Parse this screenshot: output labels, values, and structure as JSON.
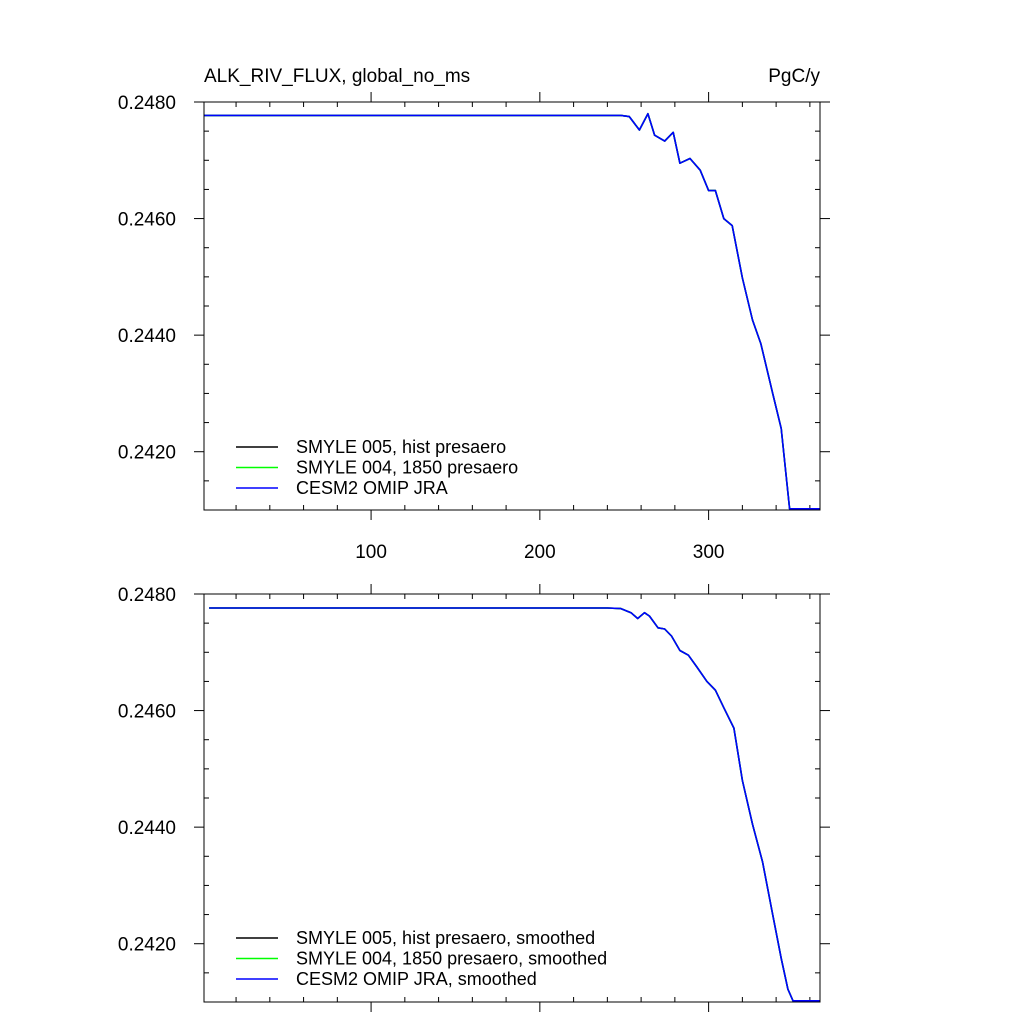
{
  "colors": {
    "smyle005": "#000000",
    "smyle004": "#00ff00",
    "cesm2": "#0000ff",
    "background": "#ffffff"
  },
  "chart_data": [
    {
      "type": "line",
      "title_left": "ALK_RIV_FLUX, global_no_ms",
      "title_right": "PgC/y",
      "xlim": [
        1,
        366
      ],
      "ylim": [
        0.241,
        0.248
      ],
      "xticks": [
        100,
        200,
        300
      ],
      "xtick_labels": [
        "100",
        "200",
        "300"
      ],
      "xticks_labeled": true,
      "yticks": [
        0.248,
        0.246,
        0.244,
        0.242
      ],
      "ytick_labels": [
        "0.2480",
        "0.2460",
        "0.2440",
        "0.2420"
      ],
      "legend_position": "bottom-left",
      "series": [
        {
          "name": "SMYLE 005, hist presaero",
          "color": "#000000",
          "x": [
            1,
            248,
            253,
            259,
            264,
            268,
            274,
            279,
            283,
            289,
            295,
            300,
            304,
            309,
            314,
            320,
            326,
            331,
            338,
            343,
            348,
            366
          ],
          "y": [
            0.24777,
            0.24777,
            0.24775,
            0.24752,
            0.2478,
            0.24743,
            0.24733,
            0.24748,
            0.24695,
            0.24703,
            0.24683,
            0.24648,
            0.24648,
            0.246,
            0.24588,
            0.24498,
            0.24426,
            0.24385,
            0.243,
            0.2424,
            0.24102,
            0.24102
          ]
        },
        {
          "name": "SMYLE 004, 1850 presaero",
          "color": "#00ff00",
          "x": [
            1,
            248,
            253,
            259,
            264,
            268,
            274,
            279,
            283,
            289,
            295,
            300,
            304,
            309,
            314,
            320,
            326,
            331,
            338,
            343,
            348,
            366
          ],
          "y": [
            0.24777,
            0.24777,
            0.24775,
            0.24752,
            0.2478,
            0.24743,
            0.24733,
            0.24748,
            0.24695,
            0.24703,
            0.24683,
            0.24648,
            0.24648,
            0.246,
            0.24588,
            0.24498,
            0.24426,
            0.24385,
            0.243,
            0.2424,
            0.24102,
            0.24102
          ]
        },
        {
          "name": "CESM2 OMIP JRA",
          "color": "#0000ff",
          "x": [
            1,
            248,
            253,
            259,
            264,
            268,
            274,
            279,
            283,
            289,
            295,
            300,
            304,
            309,
            314,
            320,
            326,
            331,
            338,
            343,
            348,
            366
          ],
          "y": [
            0.24777,
            0.24777,
            0.24775,
            0.24752,
            0.2478,
            0.24743,
            0.24733,
            0.24748,
            0.24695,
            0.24703,
            0.24683,
            0.24648,
            0.24648,
            0.246,
            0.24588,
            0.24498,
            0.24426,
            0.24385,
            0.243,
            0.2424,
            0.24102,
            0.24102
          ]
        }
      ]
    },
    {
      "type": "line",
      "title_left": "",
      "title_right": "",
      "xlim": [
        1,
        366
      ],
      "ylim": [
        0.241,
        0.248
      ],
      "xticks": [
        100,
        200,
        300
      ],
      "xtick_labels": [
        "",
        "",
        ""
      ],
      "xticks_labeled": false,
      "yticks": [
        0.248,
        0.246,
        0.244,
        0.242
      ],
      "ytick_labels": [
        "0.2480",
        "0.2460",
        "0.2440",
        "0.2420"
      ],
      "legend_position": "bottom-left",
      "series": [
        {
          "name": "SMYLE 005, hist presaero, smoothed",
          "color": "#000000",
          "x": [
            4,
            240,
            248,
            254,
            258,
            262,
            265,
            270,
            274,
            278,
            283,
            288,
            293,
            299,
            304,
            309,
            315,
            320,
            326,
            332,
            338,
            343,
            347,
            350,
            366
          ],
          "y": [
            0.24776,
            0.24776,
            0.24775,
            0.24768,
            0.24758,
            0.24768,
            0.24762,
            0.24742,
            0.2474,
            0.24728,
            0.24703,
            0.24695,
            0.24675,
            0.2465,
            0.24635,
            0.24605,
            0.2457,
            0.2448,
            0.24405,
            0.2434,
            0.2425,
            0.24175,
            0.24122,
            0.24102,
            0.24102
          ]
        },
        {
          "name": "SMYLE 004, 1850 presaero, smoothed",
          "color": "#00ff00",
          "x": [
            4,
            240,
            248,
            254,
            258,
            262,
            265,
            270,
            274,
            278,
            283,
            288,
            293,
            299,
            304,
            309,
            315,
            320,
            326,
            332,
            338,
            343,
            347,
            350,
            366
          ],
          "y": [
            0.24776,
            0.24776,
            0.24775,
            0.24768,
            0.24758,
            0.24768,
            0.24762,
            0.24742,
            0.2474,
            0.24728,
            0.24703,
            0.24695,
            0.24675,
            0.2465,
            0.24635,
            0.24605,
            0.2457,
            0.2448,
            0.24405,
            0.2434,
            0.2425,
            0.24175,
            0.24122,
            0.24102,
            0.24102
          ]
        },
        {
          "name": "CESM2 OMIP JRA, smoothed",
          "color": "#0000ff",
          "x": [
            4,
            240,
            248,
            254,
            258,
            262,
            265,
            270,
            274,
            278,
            283,
            288,
            293,
            299,
            304,
            309,
            315,
            320,
            326,
            332,
            338,
            343,
            347,
            350,
            366
          ],
          "y": [
            0.24776,
            0.24776,
            0.24775,
            0.24768,
            0.24758,
            0.24768,
            0.24762,
            0.24742,
            0.2474,
            0.24728,
            0.24703,
            0.24695,
            0.24675,
            0.2465,
            0.24635,
            0.24605,
            0.2457,
            0.2448,
            0.24405,
            0.2434,
            0.2425,
            0.24175,
            0.24122,
            0.24102,
            0.24102
          ]
        }
      ]
    }
  ]
}
